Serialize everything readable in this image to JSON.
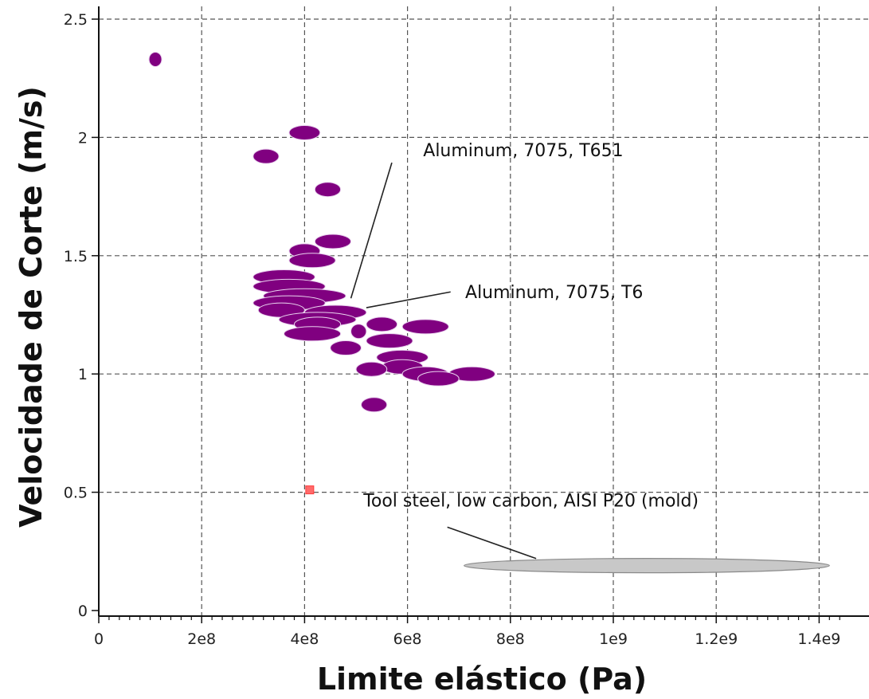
{
  "chart_data": {
    "type": "scatter",
    "xlabel": "Limite elástico (Pa)",
    "ylabel": "Velocidade de Corte (m/s)",
    "xlim": [
      0,
      1450000000
    ],
    "ylim": [
      0,
      2.55
    ],
    "grid": true,
    "x_ticks": [
      {
        "value": 0,
        "label": "0"
      },
      {
        "value": 200000000,
        "label": "2e8"
      },
      {
        "value": 400000000,
        "label": "4e8"
      },
      {
        "value": 600000000,
        "label": "6e8"
      },
      {
        "value": 800000000,
        "label": "8e8"
      },
      {
        "value": 1000000000,
        "label": "1e9"
      },
      {
        "value": 1200000000,
        "label": "1.2e9"
      },
      {
        "value": 1400000000,
        "label": "1.4e9"
      }
    ],
    "y_ticks": [
      {
        "value": 0,
        "label": "0"
      },
      {
        "value": 0.5,
        "label": "0.5"
      },
      {
        "value": 1,
        "label": "1"
      },
      {
        "value": 1.5,
        "label": "1.5"
      },
      {
        "value": 2,
        "label": "2"
      },
      {
        "value": 2.5,
        "label": "2.5"
      }
    ],
    "colors": {
      "aluminum": "#800080",
      "aluminum_edge": "#e9d3ee",
      "steel_mold": "#c8c8c8",
      "steel_mold_edge": "#8a8a8a",
      "point_marker": "#ff6b6b"
    },
    "series": [
      {
        "color": "#800080",
        "points": [
          {
            "x_min": 100000000,
            "x_max": 120000000,
            "y": 2.33
          },
          {
            "x_min": 370000000,
            "x_max": 430000000,
            "y": 2.02
          },
          {
            "x_min": 300000000,
            "x_max": 350000000,
            "y": 1.92
          },
          {
            "x_min": 420000000,
            "x_max": 470000000,
            "y": 1.78
          },
          {
            "x_min": 420000000,
            "x_max": 490000000,
            "y": 1.56
          },
          {
            "x_min": 370000000,
            "x_max": 430000000,
            "y": 1.52
          },
          {
            "x_min": 370000000,
            "x_max": 460000000,
            "y": 1.48
          },
          {
            "x_min": 300000000,
            "x_max": 420000000,
            "y": 1.41
          },
          {
            "x_min": 300000000,
            "x_max": 440000000,
            "y": 1.37
          },
          {
            "x_min": 320000000,
            "x_max": 480000000,
            "y": 1.33
          },
          {
            "x_min": 300000000,
            "x_max": 440000000,
            "y": 1.3
          },
          {
            "x_min": 310000000,
            "x_max": 400000000,
            "y": 1.27
          },
          {
            "x_min": 400000000,
            "x_max": 520000000,
            "y": 1.26
          },
          {
            "x_min": 350000000,
            "x_max": 500000000,
            "y": 1.23
          },
          {
            "x_min": 380000000,
            "x_max": 470000000,
            "y": 1.21
          },
          {
            "x_min": 520000000,
            "x_max": 580000000,
            "y": 1.21
          },
          {
            "x_min": 590000000,
            "x_max": 680000000,
            "y": 1.2
          },
          {
            "x_min": 490000000,
            "x_max": 520000000,
            "y": 1.18
          },
          {
            "x_min": 360000000,
            "x_max": 470000000,
            "y": 1.17
          },
          {
            "x_min": 520000000,
            "x_max": 610000000,
            "y": 1.14
          },
          {
            "x_min": 450000000,
            "x_max": 510000000,
            "y": 1.11
          },
          {
            "x_min": 540000000,
            "x_max": 640000000,
            "y": 1.07
          },
          {
            "x_min": 550000000,
            "x_max": 630000000,
            "y": 1.03
          },
          {
            "x_min": 500000000,
            "x_max": 560000000,
            "y": 1.02
          },
          {
            "x_min": 680000000,
            "x_max": 770000000,
            "y": 1.0
          },
          {
            "x_min": 590000000,
            "x_max": 680000000,
            "y": 1.0
          },
          {
            "x_min": 620000000,
            "x_max": 700000000,
            "y": 0.98
          },
          {
            "x_min": 510000000,
            "x_max": 560000000,
            "y": 0.87
          }
        ]
      },
      {
        "color": "#c8c8c8",
        "points": [
          {
            "x_min": 710000000,
            "x_max": 1420000000,
            "y": 0.19
          }
        ]
      },
      {
        "color": "#ff6b6b",
        "points": [
          {
            "x_min": 408000000,
            "x_max": 412000000,
            "y": 0.51
          }
        ]
      }
    ],
    "annotations": [
      {
        "text": "Aluminum, 7075, T651",
        "anchor": {
          "x": 490000000,
          "y": 1.32
        },
        "label_pos": {
          "x": 825000000,
          "y": 1.92
        }
      },
      {
        "text": "Aluminum, 7075, T6",
        "anchor": {
          "x": 520000000,
          "y": 1.28
        },
        "label_pos": {
          "x": 885000000,
          "y": 1.32
        }
      },
      {
        "text": "Tool steel, low carbon, AISI P20 (mold)",
        "anchor": {
          "x": 850000000,
          "y": 0.22
        },
        "label_pos": {
          "x": 840000000,
          "y": 0.44
        }
      }
    ]
  }
}
